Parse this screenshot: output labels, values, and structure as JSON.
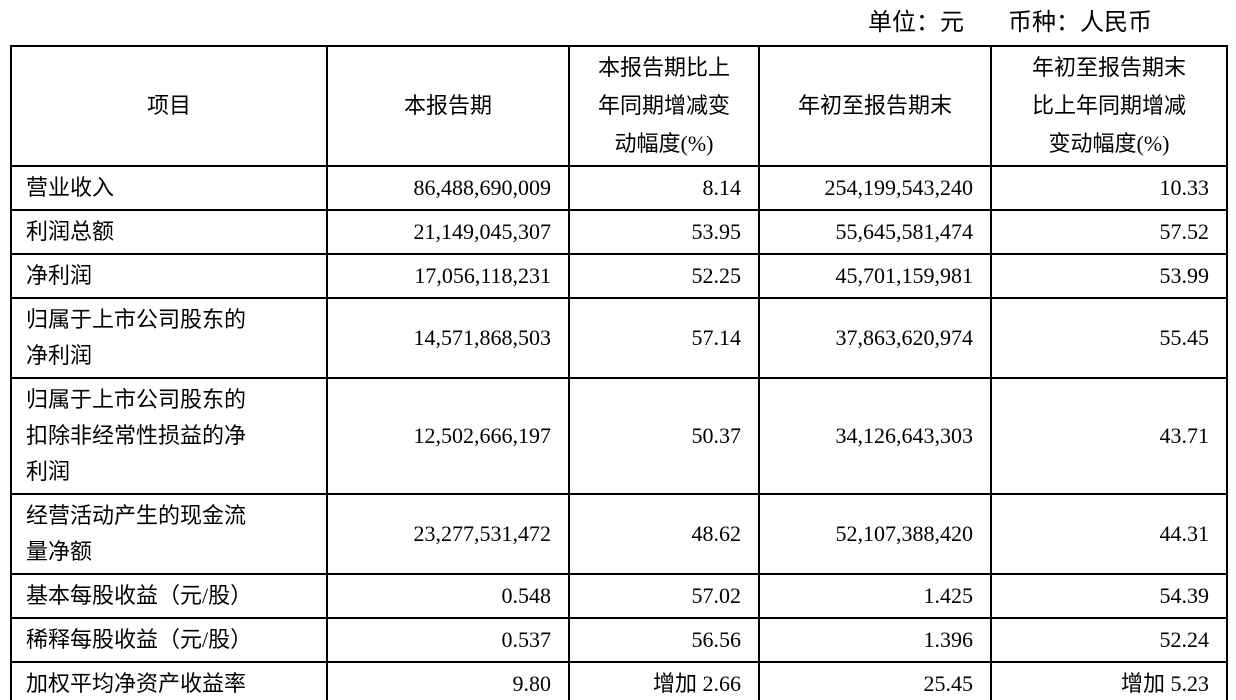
{
  "meta": {
    "unit_label": "单位：元",
    "currency_label": "币种：人民币"
  },
  "table": {
    "columns": [
      {
        "label": "项目"
      },
      {
        "label": "本报告期"
      },
      {
        "label": "本报告期比上\n年同期增减变\n动幅度(%)"
      },
      {
        "label": "年初至报告期末"
      },
      {
        "label": "年初至报告期末\n比上年同期增减\n变动幅度(%)"
      }
    ],
    "rows": [
      {
        "item": "营业收入",
        "current_period": "86,488,690,009",
        "period_change": "8.14",
        "ytd": "254,199,543,240",
        "ytd_change": "10.33"
      },
      {
        "item": "利润总额",
        "current_period": "21,149,045,307",
        "period_change": "53.95",
        "ytd": "55,645,581,474",
        "ytd_change": "57.52"
      },
      {
        "item": "净利润",
        "current_period": "17,056,118,231",
        "period_change": "52.25",
        "ytd": "45,701,159,981",
        "ytd_change": "53.99"
      },
      {
        "item": "归属于上市公司股东的\n净利润",
        "current_period": "14,571,868,503",
        "period_change": "57.14",
        "ytd": "37,863,620,974",
        "ytd_change": "55.45"
      },
      {
        "item": "归属于上市公司股东的\n扣除非经常性损益的净\n利润",
        "current_period": "12,502,666,197",
        "period_change": "50.37",
        "ytd": "34,126,643,303",
        "ytd_change": "43.71"
      },
      {
        "item": "经营活动产生的现金流\n量净额",
        "current_period": "23,277,531,472",
        "period_change": "48.62",
        "ytd": "52,107,388,420",
        "ytd_change": "44.31"
      },
      {
        "item": "基本每股收益（元/股）",
        "current_period": "0.548",
        "period_change": "57.02",
        "ytd": "1.425",
        "ytd_change": "54.39"
      },
      {
        "item": "稀释每股收益（元/股）",
        "current_period": "0.537",
        "period_change": "56.56",
        "ytd": "1.396",
        "ytd_change": "52.24"
      },
      {
        "item": "加权平均净资产收益率",
        "current_period": "9.80",
        "period_change": "增加 2.66",
        "ytd": "25.45",
        "ytd_change": "增加 5.23"
      }
    ]
  }
}
